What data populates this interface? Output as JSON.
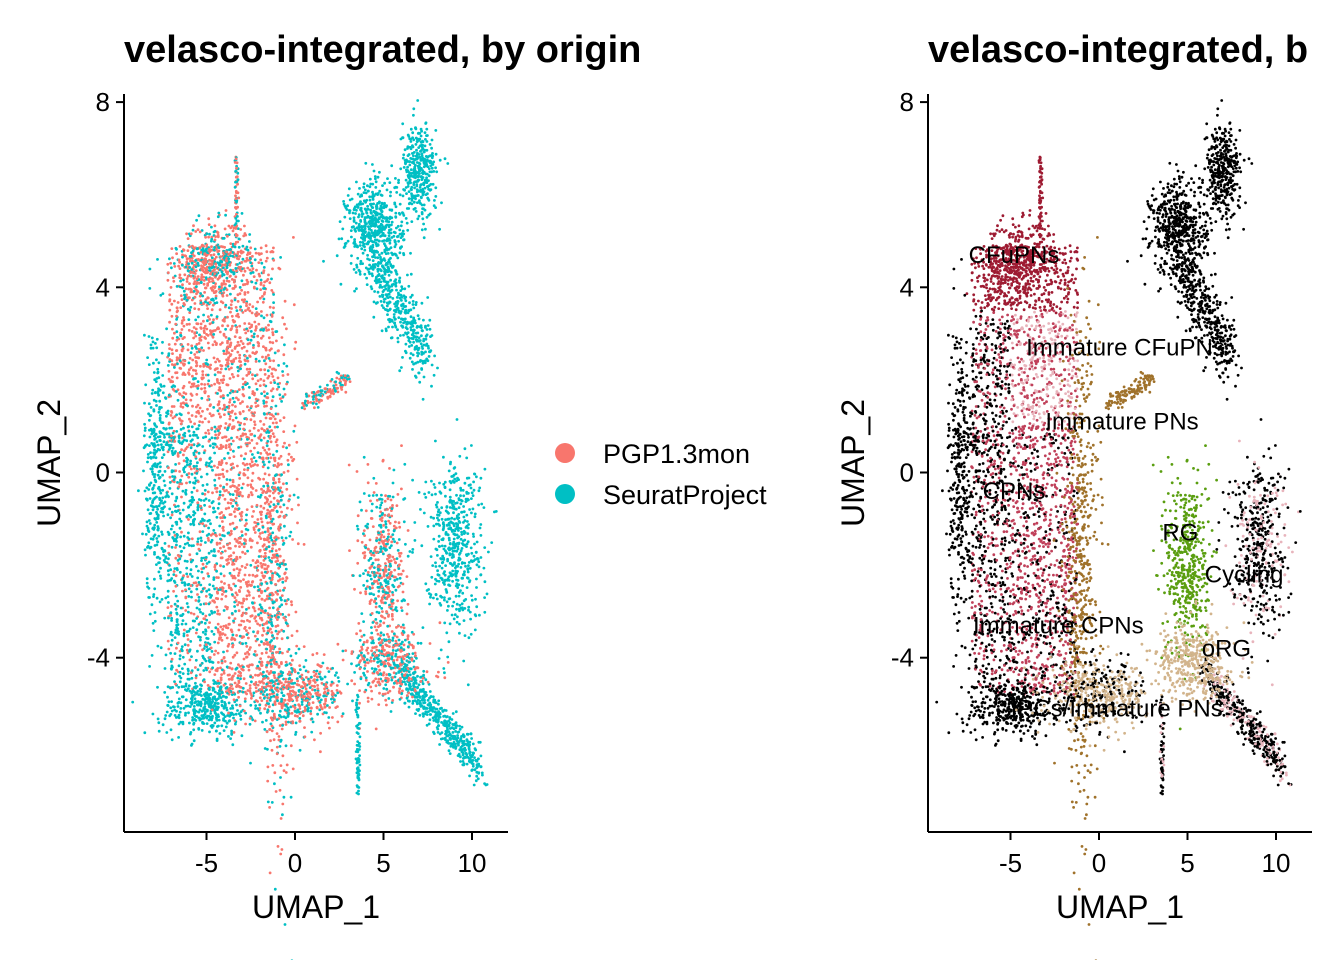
{
  "chart_data": [
    {
      "type": "scatter",
      "title": "velasco-integrated, by origin",
      "xlabel": "UMAP_1",
      "ylabel": "UMAP_2",
      "xlim": [
        -9.5,
        12
      ],
      "ylim": [
        -7.7,
        8.2
      ],
      "xticks": [
        -5,
        0,
        5,
        10
      ],
      "yticks": [
        -4,
        0,
        4,
        8
      ],
      "xtick_labels": [
        "-5",
        "0",
        "5",
        "10"
      ],
      "ytick_labels": [
        "-4",
        "0",
        "4",
        "8"
      ],
      "legend_position": "right",
      "grid": false,
      "series": [
        {
          "name": "PGP1.3mon",
          "color": "#F8766D"
        },
        {
          "name": "SeuratProject",
          "color": "#00BFC4"
        }
      ],
      "regions": [
        {
          "series": "PGP1.3mon",
          "x": [
            -7.5,
            -1.5
          ],
          "y": [
            -5.5,
            5.3
          ]
        },
        {
          "series": "PGP1.3mon",
          "x": [
            3.5,
            6.5
          ],
          "y": [
            -4.5,
            -0.5
          ]
        },
        {
          "series": "SeuratProject",
          "x": [
            -8.5,
            -1.5
          ],
          "y": [
            -5.6,
            1.8
          ]
        },
        {
          "series": "SeuratProject",
          "x": [
            3,
            8
          ],
          "y": [
            2,
            7.3
          ]
        },
        {
          "series": "SeuratProject",
          "x": [
            6,
            10.8
          ],
          "y": [
            -6.5,
            0.5
          ]
        },
        {
          "series": "SeuratProject",
          "x": [
            -4,
            5
          ],
          "y": [
            -5.6,
            -4
          ]
        }
      ]
    },
    {
      "type": "scatter",
      "title": "velasco-integrated, b",
      "xlabel": "UMAP_1",
      "ylabel": "UMAP_2",
      "xlim": [
        -9.5,
        12
      ],
      "ylim": [
        -7.7,
        8.2
      ],
      "xticks": [
        -5,
        0,
        5,
        10
      ],
      "yticks": [
        -4,
        0,
        4,
        8
      ],
      "xtick_labels": [
        "-5",
        "0",
        "5",
        "10"
      ],
      "ytick_labels": [
        "-4",
        "0",
        "4",
        "8"
      ],
      "grid": false,
      "annotations": [
        {
          "text": "CFuPNs",
          "x": -4.8,
          "y": 4.7
        },
        {
          "text": "Immature CFuPNs",
          "x": 1.5,
          "y": 2.7
        },
        {
          "text": "Immature PNs",
          "x": 1.3,
          "y": 1.1
        },
        {
          "text": "CPNs",
          "x": -4.8,
          "y": -0.4
        },
        {
          "text": "RG",
          "x": 4.6,
          "y": -1.3
        },
        {
          "text": "Cycling",
          "x": 8.2,
          "y": -2.2
        },
        {
          "text": "Immature CPNs",
          "x": -2.3,
          "y": -3.3
        },
        {
          "text": "oRG",
          "x": 7.2,
          "y": -3.8
        },
        {
          "text": "IPCs/Immature PNs",
          "x": 1,
          "y": -5.1
        }
      ],
      "colors": {
        "cfupn": "#9E1B32",
        "cpn": "#C0405A",
        "pink": "#E8B4BC",
        "brown": "#A0722B",
        "tan": "#D2B48C",
        "green": "#5A9E10",
        "black": "#000000"
      }
    }
  ]
}
